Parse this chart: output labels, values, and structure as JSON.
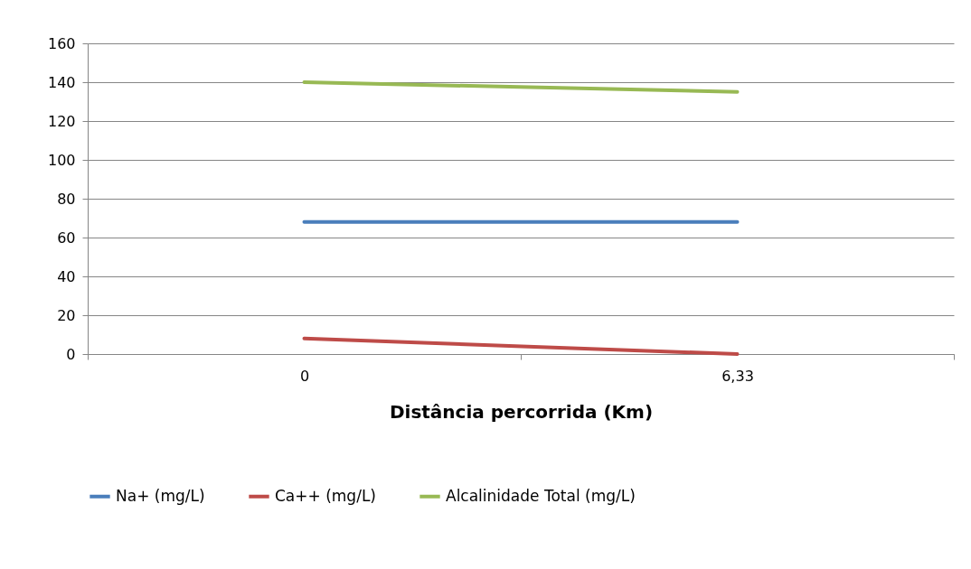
{
  "chart_data": {
    "type": "line",
    "xlabel": "Distância percorrida (Km)",
    "categories": [
      "0",
      "6,33"
    ],
    "series": [
      {
        "name": "Na+ (mg/L)",
        "color": "#4a7ebb",
        "values": [
          68,
          68
        ]
      },
      {
        "name": "Ca++ (mg/L)",
        "color": "#be4b48",
        "values": [
          8,
          0
        ]
      },
      {
        "name": "Alcalinidade Total (mg/L)",
        "color": "#98b954",
        "values": [
          140,
          135
        ]
      }
    ],
    "ylim": [
      0,
      160
    ],
    "yticks": [
      0,
      20,
      40,
      60,
      80,
      100,
      120,
      140,
      160
    ],
    "grid": "y",
    "legend": "bottom",
    "marker": "none",
    "line_style": "solid"
  }
}
